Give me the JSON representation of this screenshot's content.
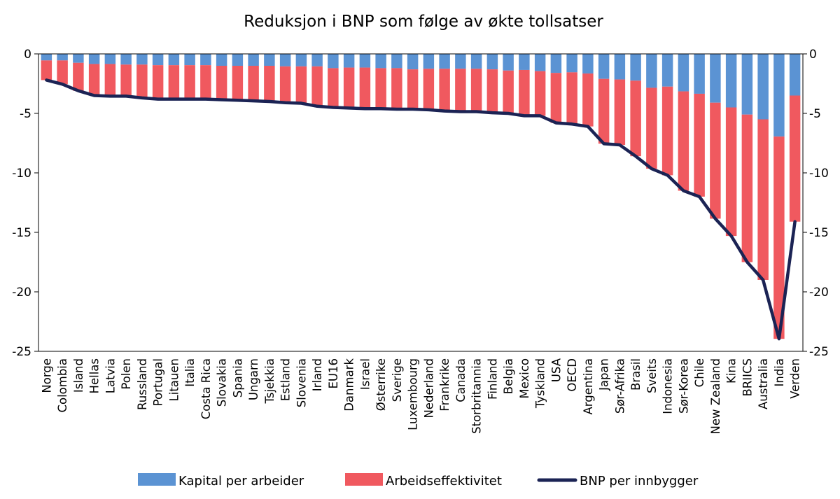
{
  "chart_data": {
    "type": "bar",
    "stacked": true,
    "title": "Reduksjon i BNP som følge av økte tollsatser",
    "ylim": [
      -25,
      0
    ],
    "yticks": [
      0,
      -5,
      -10,
      -15,
      -20,
      -25
    ],
    "ytick_labels": [
      "0",
      "-5",
      "-10",
      "-15",
      "-20",
      "-25"
    ],
    "grid": false,
    "legend_position": "bottom",
    "categories": [
      "Norge",
      "Colombia",
      "Island",
      "Hellas",
      "Latvia",
      "Polen",
      "Russland",
      "Portugal",
      "Litauen",
      "Italia",
      "Costa Rica",
      "Slovakia",
      "Spania",
      "Ungarn",
      "Tsjekkia",
      "Estland",
      "Slovenia",
      "Irland",
      "EU16",
      "Danmark",
      "Israel",
      "Østerrike",
      "Sverige",
      "Luxembourg",
      "Nederland",
      "Frankrike",
      "Canada",
      "Storbritannia",
      "Finland",
      "Belgia",
      "Mexico",
      "Tyskland",
      "USA",
      "OECD",
      "Argentina",
      "Japan",
      "Sør-Afrika",
      "Brasil",
      "Sveits",
      "Indonesia",
      "Sør-Korea",
      "Chile",
      "New Zealand",
      "Kina",
      "BRIICS",
      "Australia",
      "India",
      "Verden"
    ],
    "series": [
      {
        "name": "Kapital per arbeider",
        "color": "#5b93d3",
        "kind": "bar",
        "values": [
          -0.55,
          -0.55,
          -0.75,
          -0.85,
          -0.85,
          -0.9,
          -0.9,
          -0.95,
          -0.95,
          -0.95,
          -0.95,
          -1.0,
          -1.0,
          -1.0,
          -1.0,
          -1.05,
          -1.05,
          -1.05,
          -1.2,
          -1.15,
          -1.15,
          -1.2,
          -1.2,
          -1.3,
          -1.25,
          -1.25,
          -1.25,
          -1.25,
          -1.3,
          -1.4,
          -1.35,
          -1.45,
          -1.6,
          -1.55,
          -1.65,
          -2.1,
          -2.15,
          -2.25,
          -2.85,
          -2.75,
          -3.15,
          -3.35,
          -4.1,
          -4.5,
          -5.1,
          -5.5,
          -6.95,
          -3.5
        ]
      },
      {
        "name": "Arbeidseffektivitet",
        "color": "#f0595f",
        "kind": "bar",
        "values": [
          -1.65,
          -2.0,
          -2.35,
          -2.65,
          -2.7,
          -2.65,
          -2.8,
          -2.85,
          -2.85,
          -2.85,
          -2.85,
          -2.85,
          -2.9,
          -2.95,
          -3.0,
          -3.05,
          -3.1,
          -3.35,
          -3.3,
          -3.4,
          -3.45,
          -3.4,
          -3.45,
          -3.35,
          -3.45,
          -3.55,
          -3.6,
          -3.6,
          -3.65,
          -3.6,
          -3.85,
          -3.75,
          -4.2,
          -4.35,
          -4.45,
          -5.45,
          -5.5,
          -6.35,
          -6.8,
          -7.45,
          -8.35,
          -8.65,
          -9.75,
          -10.8,
          -12.4,
          -13.5,
          -17.0,
          -10.6
        ]
      },
      {
        "name": "BNP per innbygger",
        "color": "#1b2354",
        "kind": "line",
        "values": [
          -2.2,
          -2.55,
          -3.1,
          -3.5,
          -3.55,
          -3.55,
          -3.7,
          -3.8,
          -3.8,
          -3.8,
          -3.8,
          -3.85,
          -3.9,
          -3.95,
          -4.0,
          -4.1,
          -4.15,
          -4.4,
          -4.5,
          -4.55,
          -4.6,
          -4.6,
          -4.65,
          -4.65,
          -4.7,
          -4.8,
          -4.85,
          -4.85,
          -4.95,
          -5.0,
          -5.2,
          -5.2,
          -5.8,
          -5.9,
          -6.1,
          -7.55,
          -7.65,
          -8.6,
          -9.65,
          -10.2,
          -11.5,
          -12.0,
          -13.85,
          -15.3,
          -17.5,
          -19.0,
          -23.95,
          -14.1
        ]
      }
    ]
  }
}
